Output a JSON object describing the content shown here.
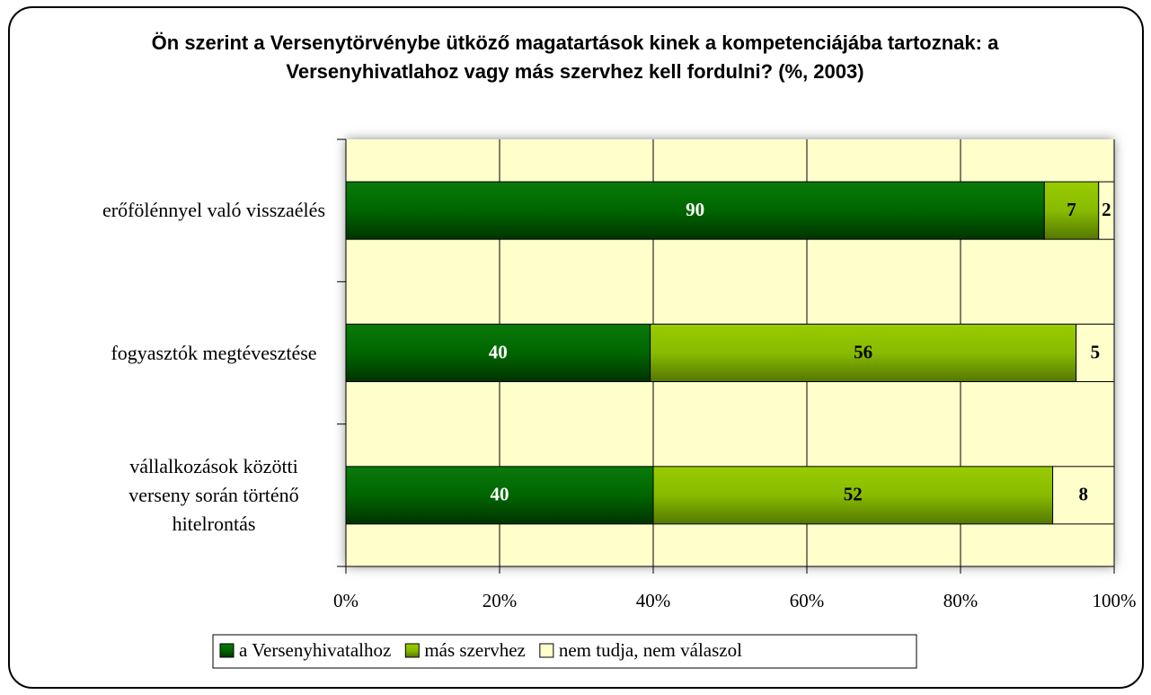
{
  "chart_data": {
    "type": "bar",
    "orientation": "horizontal",
    "stacked": "percent",
    "title": "Ön szerint a Versenytörvénybe ütköző magatartások kinek a kompetenciájába tartoznak: a Versenyhivatlahoz vagy más szervhez kell fordulni? (%, 2003)",
    "categories": [
      "erőfölénnyel való visszaélés",
      "fogyasztók megtévesztése",
      "vállalkozások közötti verseny során történő hitelrontás"
    ],
    "series": [
      {
        "name": "a Versenyhivatalhoz",
        "color": "#006600",
        "values": [
          90,
          40,
          40
        ]
      },
      {
        "name": "más szervhez",
        "color": "#99cc00",
        "values": [
          7,
          56,
          52
        ]
      },
      {
        "name": "nem tudja, nem válaszol",
        "color": "#ffffcc",
        "values": [
          2,
          5,
          8
        ]
      }
    ],
    "xlim": [
      0,
      100
    ],
    "xticks": [
      {
        "value": 0,
        "label": "0%"
      },
      {
        "value": 20,
        "label": "20%"
      },
      {
        "value": 40,
        "label": "40%"
      },
      {
        "value": 60,
        "label": "60%"
      },
      {
        "value": 80,
        "label": "80%"
      },
      {
        "value": 100,
        "label": "100%"
      }
    ],
    "grid": true,
    "legend": "bottom"
  }
}
